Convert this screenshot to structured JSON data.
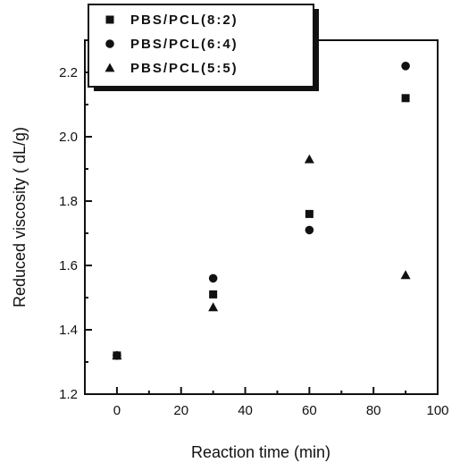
{
  "chart_data": {
    "type": "scatter",
    "title": "",
    "xlabel": "Reaction time (min)",
    "ylabel": "Reduced viscosity ( dL/g)",
    "xlim": [
      -10,
      100
    ],
    "ylim": [
      1.2,
      2.3
    ],
    "xticks": [
      0,
      20,
      40,
      60,
      80,
      100
    ],
    "yticks": [
      1.2,
      1.4,
      1.6,
      1.8,
      2.0,
      2.2
    ],
    "grid": false,
    "legend_position": "top-left (outside, overlapping top axis)",
    "series": [
      {
        "name": "PBS/PCL(8:2)",
        "marker": "square",
        "color": "#111111",
        "points": [
          {
            "x": 0,
            "y": 1.32
          },
          {
            "x": 30,
            "y": 1.51
          },
          {
            "x": 60,
            "y": 1.76
          },
          {
            "x": 90,
            "y": 2.12
          }
        ]
      },
      {
        "name": "PBS/PCL(6:4)",
        "marker": "circle",
        "color": "#111111",
        "points": [
          {
            "x": 0,
            "y": 1.32
          },
          {
            "x": 30,
            "y": 1.56
          },
          {
            "x": 60,
            "y": 1.71
          },
          {
            "x": 90,
            "y": 2.22
          }
        ]
      },
      {
        "name": "PBS/PCL(5:5)",
        "marker": "triangle",
        "color": "#111111",
        "points": [
          {
            "x": 0,
            "y": 1.32
          },
          {
            "x": 30,
            "y": 1.47
          },
          {
            "x": 60,
            "y": 1.93
          },
          {
            "x": 90,
            "y": 1.57
          }
        ]
      }
    ]
  }
}
